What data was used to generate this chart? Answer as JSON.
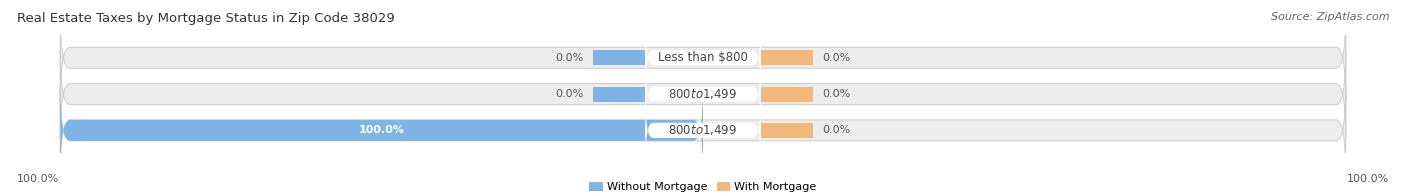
{
  "title": "Real Estate Taxes by Mortgage Status in Zip Code 38029",
  "source": "Source: ZipAtlas.com",
  "rows": [
    {
      "label": "Less than $800",
      "without_mortgage": 0.0,
      "with_mortgage": 0.0
    },
    {
      "label": "$800 to $1,499",
      "without_mortgage": 0.0,
      "with_mortgage": 0.0
    },
    {
      "label": "$800 to $1,499",
      "without_mortgage": 100.0,
      "with_mortgage": 0.0
    }
  ],
  "left_axis_label": "100.0%",
  "right_axis_label": "100.0%",
  "color_without_mortgage": "#7EB5E5",
  "color_with_mortgage": "#F0B87A",
  "bar_bg_color": "#EDEDED",
  "bar_border_color": "#CCCCCC",
  "title_fontsize": 9.5,
  "source_fontsize": 8,
  "label_fontsize": 8.5,
  "pct_fontsize": 8,
  "legend_label_without": "Without Mortgage",
  "legend_label_with": "With Mortgage",
  "label_box_color": "white",
  "label_text_color": "#444444",
  "pct_text_color": "#555555",
  "wom_pct_text_color": "white"
}
